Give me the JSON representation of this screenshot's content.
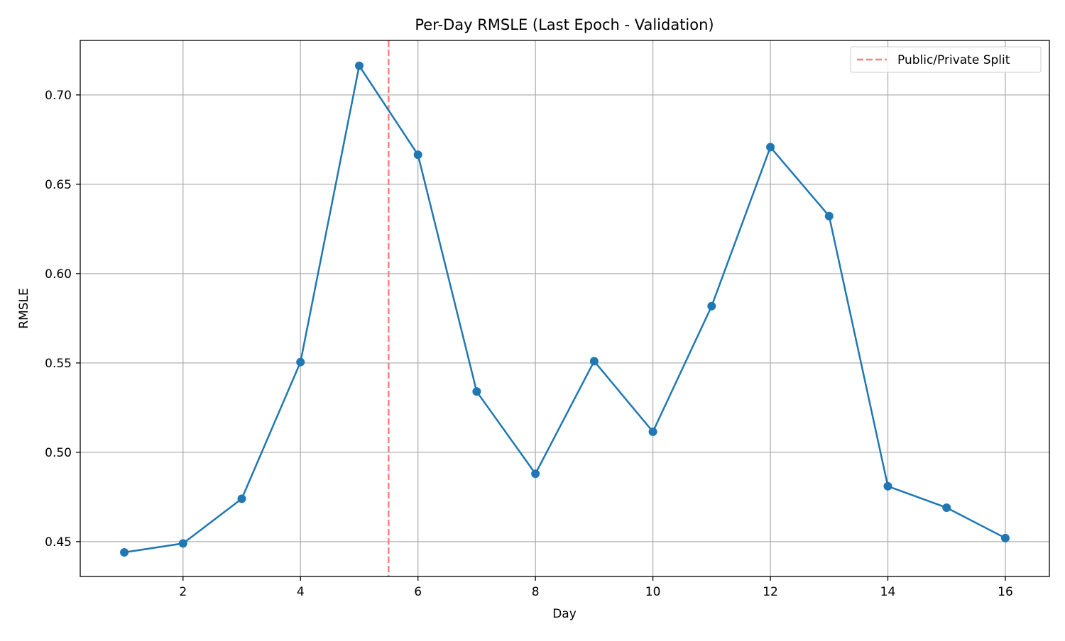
{
  "chart_data": {
    "type": "line",
    "title": "Per-Day RMSLE (Last Epoch - Validation)",
    "xlabel": "Day",
    "ylabel": "RMSLE",
    "xlim": [
      0.25,
      16.75
    ],
    "ylim": [
      0.4305,
      0.7305
    ],
    "x_ticks": [
      2,
      4,
      6,
      8,
      10,
      12,
      14,
      16
    ],
    "x_tick_labels": [
      "2",
      "4",
      "6",
      "8",
      "10",
      "12",
      "14",
      "16"
    ],
    "y_ticks": [
      0.45,
      0.5,
      0.55,
      0.6,
      0.65,
      0.7
    ],
    "y_tick_labels": [
      "0.45",
      "0.50",
      "0.55",
      "0.60",
      "0.65",
      "0.70"
    ],
    "grid": true,
    "legend_position": "top-right",
    "series": [
      {
        "color": "#1f77b4",
        "marker": "circle",
        "x": [
          1,
          2,
          3,
          4,
          5,
          6,
          7,
          8,
          9,
          10,
          11,
          12,
          13,
          14,
          15,
          16
        ],
        "y": [
          0.444,
          0.449,
          0.474,
          0.5505,
          0.7163,
          0.6665,
          0.534,
          0.488,
          0.551,
          0.5115,
          0.5818,
          0.6708,
          0.6322,
          0.481,
          0.469,
          0.452
        ]
      }
    ],
    "reference_lines": [
      {
        "orientation": "vertical",
        "x": 5.5,
        "style": "dashed",
        "color": "#ff7f7f",
        "label": "Public/Private Split"
      }
    ]
  }
}
